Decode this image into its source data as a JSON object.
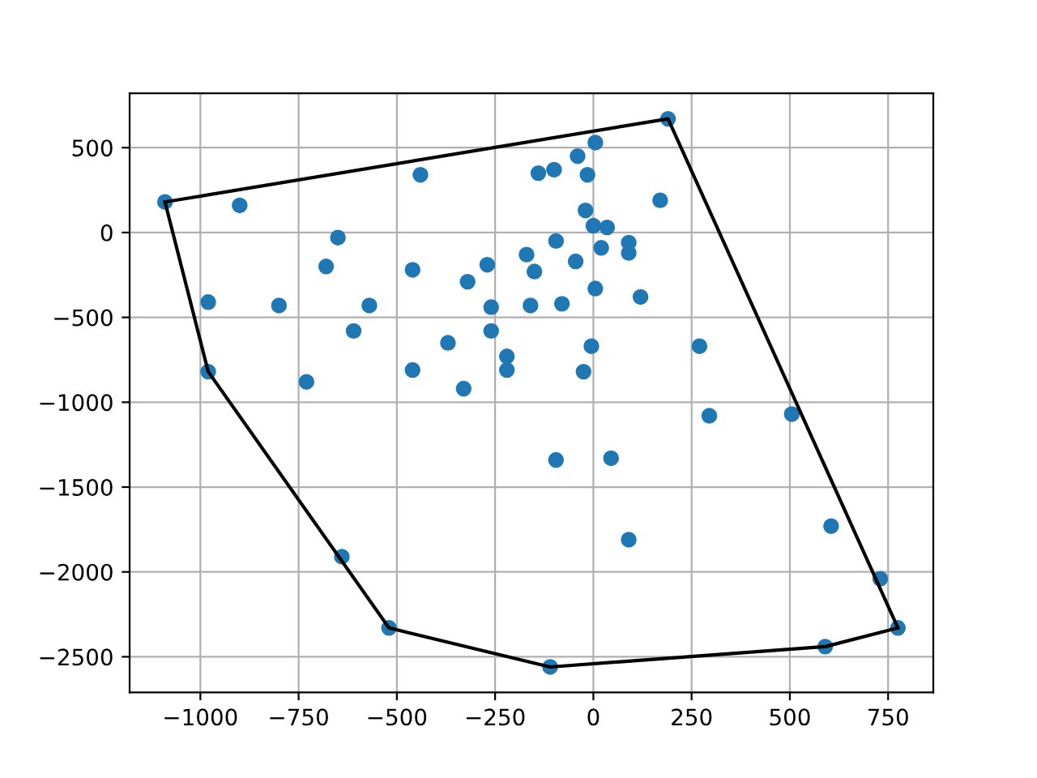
{
  "chart_data": {
    "type": "scatter",
    "grid": true,
    "legend": false,
    "xlim": [
      -1180,
      865
    ],
    "ylim": [
      -2710,
      820
    ],
    "xticks": [
      {
        "value": -1000,
        "label": "−1000"
      },
      {
        "value": -750,
        "label": "−750"
      },
      {
        "value": -500,
        "label": "−500"
      },
      {
        "value": -250,
        "label": "−250"
      },
      0,
      250,
      500,
      750
    ],
    "yticks": [
      {
        "value": -2500,
        "label": "−2500"
      },
      {
        "value": -2000,
        "label": "−2000"
      },
      {
        "value": -1500,
        "label": "−1500"
      },
      {
        "value": -1000,
        "label": "−1000"
      },
      {
        "value": -500,
        "label": "−500"
      },
      0,
      500
    ],
    "series": [
      {
        "type": "scatter",
        "color": "#1f77b4",
        "marker": "circle",
        "x": [
          -1090,
          -900,
          -440,
          -140,
          -650,
          -680,
          -460,
          -270,
          -170,
          -150,
          -320,
          -980,
          -800,
          -570,
          -260,
          -160,
          -610,
          -260,
          -370,
          -220,
          -220,
          -460,
          -980,
          -730,
          -330,
          190,
          5,
          -40,
          -100,
          -15,
          170,
          -20,
          0,
          35,
          -95,
          90,
          90,
          20,
          -45,
          5,
          120,
          -80,
          -5,
          270,
          -25,
          295,
          505,
          -640,
          -520,
          -110,
          -95,
          45,
          90,
          605,
          730,
          775,
          590
        ],
        "values": [
          180,
          160,
          340,
          350,
          -30,
          -200,
          -220,
          -190,
          -130,
          -230,
          -290,
          -410,
          -430,
          -430,
          -440,
          -430,
          -580,
          -580,
          -650,
          -730,
          -810,
          -810,
          -820,
          -880,
          -920,
          670,
          530,
          450,
          370,
          340,
          190,
          130,
          40,
          30,
          -50,
          -60,
          -120,
          -90,
          -170,
          -330,
          -380,
          -420,
          -670,
          -670,
          -820,
          -1080,
          -1070,
          -1910,
          -2330,
          -2560,
          -1340,
          -1330,
          -1810,
          -1730,
          -2040,
          -2330,
          -2440
        ]
      },
      {
        "type": "line",
        "color": "#000000",
        "marker": "none",
        "line_style": "solid",
        "x": [
          -1090,
          190,
          775
        ],
        "values": [
          180,
          670,
          -2330
        ]
      },
      {
        "type": "line",
        "color": "#000000",
        "marker": "none",
        "line_style": "solid",
        "x": [
          -1090,
          -980,
          -520,
          -110,
          590,
          775
        ],
        "values": [
          180,
          -820,
          -2330,
          -2560,
          -2440,
          -2330
        ]
      }
    ]
  }
}
